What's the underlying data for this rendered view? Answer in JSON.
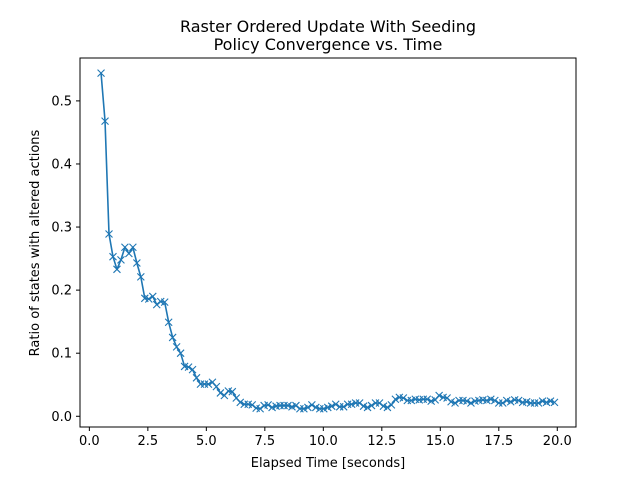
{
  "chart_data": {
    "type": "line",
    "title": "Raster Ordered Update With Seeding",
    "subtitle": "Policy Convergence vs. Time",
    "xlabel": "Elapsed Time [seconds]",
    "ylabel": "Ratio of states with altered actions",
    "xlim": [
      -0.4,
      20.8
    ],
    "ylim": [
      -0.017,
      0.568
    ],
    "xticks": [
      0.0,
      2.5,
      5.0,
      7.5,
      10.0,
      12.5,
      15.0,
      17.5,
      20.0
    ],
    "xtick_labels": [
      "0.0",
      "2.5",
      "5.0",
      "7.5",
      "10.0",
      "12.5",
      "15.0",
      "17.5",
      "20.0"
    ],
    "yticks": [
      0.0,
      0.1,
      0.2,
      0.3,
      0.4,
      0.5
    ],
    "ytick_labels": [
      "0.0",
      "0.1",
      "0.2",
      "0.3",
      "0.4",
      "0.5"
    ],
    "grid": false,
    "series": [
      {
        "color": "#1f77b4",
        "marker": "x",
        "x": [
          0.5,
          0.67,
          0.84,
          1.01,
          1.18,
          1.35,
          1.52,
          1.69,
          1.86,
          2.03,
          2.2,
          2.37,
          2.54,
          2.71,
          2.88,
          3.05,
          3.22,
          3.39,
          3.56,
          3.73,
          3.9,
          4.07,
          4.24,
          4.41,
          4.58,
          4.75,
          4.92,
          5.09,
          5.26,
          5.43,
          5.6,
          5.77,
          5.94,
          6.11,
          6.28,
          6.45,
          6.62,
          6.79,
          6.96,
          7.13,
          7.3,
          7.47,
          7.64,
          7.81,
          7.98,
          8.15,
          8.32,
          8.49,
          8.66,
          8.83,
          9.0,
          9.17,
          9.34,
          9.51,
          9.68,
          9.85,
          10.02,
          10.19,
          10.36,
          10.53,
          10.7,
          10.87,
          11.04,
          11.21,
          11.38,
          11.55,
          11.72,
          11.89,
          12.06,
          12.23,
          12.4,
          12.57,
          12.74,
          12.91,
          13.08,
          13.25,
          13.42,
          13.59,
          13.76,
          13.93,
          14.1,
          14.27,
          14.44,
          14.61,
          14.78,
          14.95,
          15.12,
          15.29,
          15.46,
          15.63,
          15.8,
          15.97,
          16.14,
          16.31,
          16.48,
          16.65,
          16.82,
          16.99,
          17.16,
          17.33,
          17.5,
          17.67,
          17.84,
          18.01,
          18.18,
          18.35,
          18.52,
          18.69,
          18.86,
          19.03,
          19.2,
          19.37,
          19.54,
          19.71,
          19.88
        ],
        "y": [
          0.544,
          0.468,
          0.289,
          0.253,
          0.233,
          0.248,
          0.268,
          0.258,
          0.268,
          0.243,
          0.221,
          0.187,
          0.186,
          0.19,
          0.177,
          0.182,
          0.181,
          0.149,
          0.125,
          0.11,
          0.1,
          0.079,
          0.078,
          0.074,
          0.061,
          0.051,
          0.051,
          0.051,
          0.054,
          0.047,
          0.037,
          0.033,
          0.04,
          0.039,
          0.029,
          0.022,
          0.019,
          0.019,
          0.018,
          0.013,
          0.012,
          0.017,
          0.018,
          0.014,
          0.016,
          0.017,
          0.017,
          0.017,
          0.015,
          0.017,
          0.012,
          0.012,
          0.014,
          0.018,
          0.014,
          0.012,
          0.012,
          0.014,
          0.016,
          0.019,
          0.015,
          0.015,
          0.019,
          0.019,
          0.021,
          0.021,
          0.016,
          0.014,
          0.017,
          0.021,
          0.021,
          0.016,
          0.014,
          0.018,
          0.027,
          0.03,
          0.029,
          0.025,
          0.025,
          0.027,
          0.026,
          0.027,
          0.027,
          0.024,
          0.026,
          0.033,
          0.03,
          0.029,
          0.023,
          0.021,
          0.025,
          0.025,
          0.024,
          0.021,
          0.024,
          0.025,
          0.026,
          0.025,
          0.027,
          0.025,
          0.021,
          0.021,
          0.025,
          0.023,
          0.026,
          0.025,
          0.022,
          0.023,
          0.021,
          0.021,
          0.021,
          0.024,
          0.022,
          0.024,
          0.022
        ]
      }
    ]
  }
}
